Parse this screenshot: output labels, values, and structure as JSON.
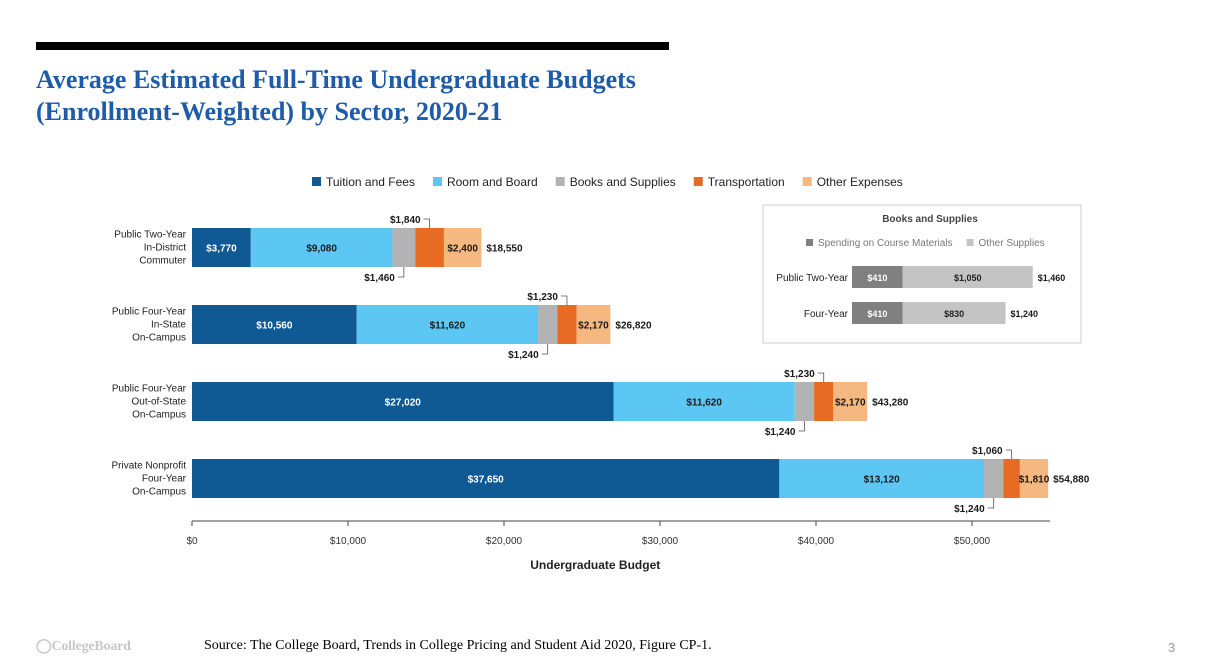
{
  "title_lines": [
    "Average Estimated Full-Time Undergraduate Budgets",
    "(Enrollment-Weighted) by Sector, 2020-21"
  ],
  "source": "Source: The College Board, Trends in College Pricing and Student Aid 2020, Figure CP-1.",
  "page_number": "3",
  "logo_text": "CollegeBoard",
  "colors": {
    "title": "#1f5ca8",
    "tuition": "#0f5a94",
    "room": "#5bc7f2",
    "books": "#b3b3b3",
    "transport": "#e76b22",
    "other": "#f5b880",
    "inset_materials": "#808080",
    "inset_other": "#c4c4c4"
  },
  "chart_data": [
    {
      "type": "bar",
      "orientation": "horizontal",
      "stacked": true,
      "title": "",
      "xlabel": "Undergraduate Budget",
      "ylabel": "",
      "xlim": [
        0,
        55000
      ],
      "x_ticks": [
        0,
        10000,
        20000,
        30000,
        40000,
        50000
      ],
      "x_tick_labels": [
        "$0",
        "$10,000",
        "$20,000",
        "$30,000",
        "$40,000",
        "$50,000"
      ],
      "legend_position": "top",
      "categories": [
        [
          "Public Two-Year",
          "In-District",
          "Commuter"
        ],
        [
          "Public Four-Year",
          "In-State",
          "On-Campus"
        ],
        [
          "Public Four-Year",
          "Out-of-State",
          "On-Campus"
        ],
        [
          "Private Nonprofit",
          "Four-Year",
          "On-Campus"
        ]
      ],
      "series": [
        {
          "name": "Tuition and Fees",
          "color_key": "tuition",
          "values": [
            3770,
            10560,
            27020,
            37650
          ],
          "labels": [
            "$3,770",
            "$10,560",
            "$27,020",
            "$37,650"
          ]
        },
        {
          "name": "Room and Board",
          "color_key": "room",
          "values": [
            9080,
            11620,
            11620,
            13120
          ],
          "labels": [
            "$9,080",
            "$11,620",
            "$11,620",
            "$13,120"
          ]
        },
        {
          "name": "Books and Supplies",
          "color_key": "books",
          "values": [
            1460,
            1240,
            1240,
            1240
          ],
          "labels": [
            "$1,460",
            "$1,240",
            "$1,240",
            "$1,240"
          ]
        },
        {
          "name": "Transportation",
          "color_key": "transport",
          "values": [
            1840,
            1230,
            1230,
            1060
          ],
          "labels": [
            "$1,840",
            "$1,230",
            "$1,230",
            "$1,060"
          ]
        },
        {
          "name": "Other Expenses",
          "color_key": "other",
          "values": [
            2400,
            2170,
            2170,
            1810
          ],
          "labels": [
            "$2,400",
            "$2,170",
            "$2,170",
            "$1,810"
          ]
        }
      ],
      "totals": [
        "$18,550",
        "$26,820",
        "$43,280",
        "$54,880"
      ]
    },
    {
      "type": "bar",
      "orientation": "horizontal",
      "stacked": true,
      "title": "Books and Supplies",
      "xlim": [
        0,
        1600
      ],
      "legend_position": "top",
      "categories": [
        "Public Two-Year",
        "Four-Year"
      ],
      "series": [
        {
          "name": "Spending on Course Materials",
          "color_key": "inset_materials",
          "values": [
            410,
            410
          ],
          "labels": [
            "$410",
            "$410"
          ]
        },
        {
          "name": "Other Supplies",
          "color_key": "inset_other",
          "values": [
            1050,
            830
          ],
          "labels": [
            "$1,050",
            "$830"
          ]
        }
      ],
      "totals": [
        "$1,460",
        "$1,240"
      ]
    }
  ]
}
